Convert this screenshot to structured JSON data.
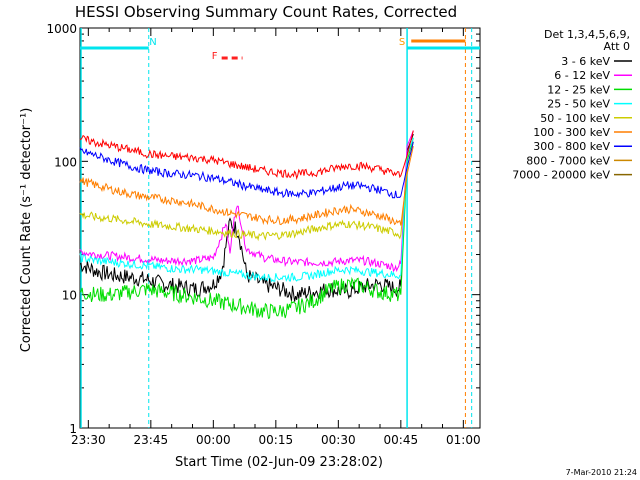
{
  "chart_data": {
    "type": "line",
    "title": "HESSI Observing Summary Count Rates, Corrected",
    "xlabel": "Start Time (02-Jun-09 23:28:02)",
    "ylabel": "Corrected Count Rate (s⁻¹ detector⁻¹)",
    "yscale": "log",
    "ylim": [
      1,
      1000
    ],
    "xlim_minutes_after_start": [
      0,
      96
    ],
    "x_ticks": [
      {
        "label": "23:30",
        "t": 2
      },
      {
        "label": "23:45",
        "t": 17
      },
      {
        "label": "00:00",
        "t": 32
      },
      {
        "label": "00:15",
        "t": 47
      },
      {
        "label": "00:30",
        "t": 62
      },
      {
        "label": "00:45",
        "t": 77
      },
      {
        "label": "01:00",
        "t": 92
      }
    ],
    "y_ticks": [
      {
        "label": "1",
        "v": 1
      },
      {
        "label": "10",
        "v": 10
      },
      {
        "label": "100",
        "v": 100
      },
      {
        "label": "1000",
        "v": 1000
      }
    ],
    "legend": {
      "header_line1": "Det 1,3,4,5,6,9,",
      "header_line2": "Att 0",
      "placement": "right"
    },
    "flags": [
      {
        "label": "N",
        "t_start": 0,
        "t_end": 16.5,
        "color": "#00e5ee"
      },
      {
        "label": "F",
        "t_start": 34,
        "t_end": 39,
        "color": "#ff2020",
        "dashed": true
      },
      {
        "label": "S",
        "t_start": 78.5,
        "t_end": 96,
        "color": "#00e5ee"
      }
    ],
    "overlay_orange_bar": {
      "t_start": 79.5,
      "t_end": 92.5,
      "color": "#ff7f00"
    },
    "night_lines": {
      "t_left": [
        0,
        16.5,
        78.5
      ],
      "t_right": [
        92.5,
        94
      ]
    },
    "series": [
      {
        "name": "3 - 6 keV",
        "color": "#000000",
        "x": [
          0,
          4,
          8,
          12,
          16,
          20,
          24,
          28,
          32,
          34,
          36,
          38,
          40,
          44,
          48,
          52,
          56,
          60,
          64,
          68,
          72,
          76,
          77,
          78.5,
          80
        ],
        "y": [
          17,
          15,
          14,
          13.5,
          13,
          12,
          11.5,
          11,
          12,
          15,
          35,
          30,
          14,
          12,
          11,
          10,
          10.5,
          11,
          10.5,
          11.5,
          12,
          11,
          11.5,
          120,
          160
        ]
      },
      {
        "name": "6 - 12 keV",
        "color": "#ff00ff",
        "x": [
          0,
          4,
          8,
          12,
          16,
          20,
          24,
          28,
          32,
          34,
          35,
          36,
          37,
          38,
          39,
          40,
          44,
          48,
          52,
          56,
          60,
          64,
          68,
          72,
          76,
          77,
          78.5,
          80
        ],
        "y": [
          21,
          20,
          19.5,
          19,
          18.5,
          18,
          18,
          18,
          19,
          28,
          35,
          20,
          40,
          45,
          30,
          22,
          19,
          18,
          17.5,
          17.5,
          17.5,
          18,
          18,
          17,
          16,
          17,
          130,
          170
        ]
      },
      {
        "name": "12 - 25 keV",
        "color": "#00dd00",
        "x": [
          0,
          4,
          8,
          12,
          16,
          20,
          24,
          28,
          32,
          36,
          40,
          44,
          48,
          52,
          56,
          60,
          64,
          68,
          72,
          76,
          77,
          78.5,
          80
        ],
        "y": [
          10.5,
          10,
          10,
          10.5,
          11,
          10.5,
          10,
          9.5,
          9,
          8.5,
          8,
          7.5,
          7.5,
          8,
          9,
          11,
          12,
          11.5,
          10.5,
          10,
          10,
          100,
          150
        ]
      },
      {
        "name": "25 - 50 keV",
        "color": "#00ffff",
        "x": [
          0,
          4,
          8,
          12,
          16,
          20,
          24,
          28,
          32,
          36,
          40,
          44,
          48,
          52,
          56,
          60,
          64,
          68,
          72,
          76,
          77,
          78.5,
          80
        ],
        "y": [
          19,
          18,
          17.5,
          17,
          16.5,
          16,
          15.5,
          15.5,
          15,
          14.5,
          14,
          13.5,
          13.5,
          13.5,
          14,
          15,
          15.5,
          15,
          14.5,
          14,
          14,
          110,
          150
        ]
      },
      {
        "name": "50 - 100 keV",
        "color": "#cccc00",
        "x": [
          0,
          4,
          8,
          12,
          16,
          20,
          24,
          28,
          32,
          36,
          40,
          44,
          48,
          52,
          56,
          60,
          64,
          68,
          72,
          76,
          77,
          78.5,
          80
        ],
        "y": [
          40,
          38,
          37,
          35.5,
          34,
          33,
          32,
          31,
          30,
          29,
          28,
          27.5,
          28,
          29,
          31,
          33,
          34,
          33,
          31,
          29,
          28,
          90,
          140
        ]
      },
      {
        "name": "100 - 300 keV",
        "color": "#ff7f00",
        "x": [
          0,
          4,
          8,
          12,
          16,
          20,
          24,
          28,
          32,
          36,
          40,
          44,
          48,
          52,
          56,
          60,
          64,
          68,
          72,
          76,
          77,
          78.5,
          80
        ],
        "y": [
          72,
          66,
          61,
          57,
          54,
          52,
          50,
          47,
          44,
          41,
          39,
          37,
          36,
          37,
          39,
          42,
          44,
          42,
          39,
          35,
          33,
          80,
          130
        ]
      },
      {
        "name": "300 - 800 keV",
        "color": "#0000ff",
        "x": [
          0,
          4,
          8,
          12,
          16,
          20,
          24,
          28,
          32,
          36,
          40,
          44,
          48,
          52,
          56,
          60,
          64,
          68,
          72,
          76,
          77,
          78.5,
          80
        ],
        "y": [
          120,
          110,
          100,
          92,
          86,
          82,
          80,
          78,
          75,
          70,
          65,
          61,
          58,
          57,
          58,
          62,
          66,
          65,
          61,
          56,
          55,
          90,
          140
        ]
      },
      {
        "name": "800 - 7000 keV",
        "color": "#cc8800",
        "x": [],
        "y": []
      },
      {
        "name": "7000 - 20000 keV",
        "color": "#886600",
        "x": [],
        "y": []
      },
      {
        "name": "",
        "color": "#ff0000",
        "legend": false,
        "x": [
          0,
          4,
          8,
          12,
          16,
          20,
          24,
          28,
          32,
          36,
          40,
          44,
          48,
          52,
          56,
          60,
          64,
          68,
          72,
          76,
          77,
          78.5,
          80
        ],
        "y": [
          148,
          138,
          130,
          122,
          114,
          110,
          108,
          106,
          102,
          96,
          90,
          85,
          82,
          80,
          82,
          87,
          93,
          92,
          87,
          80,
          78,
          110,
          170
        ]
      }
    ]
  },
  "footer": {
    "date": "7-Mar-2010 21:24"
  }
}
